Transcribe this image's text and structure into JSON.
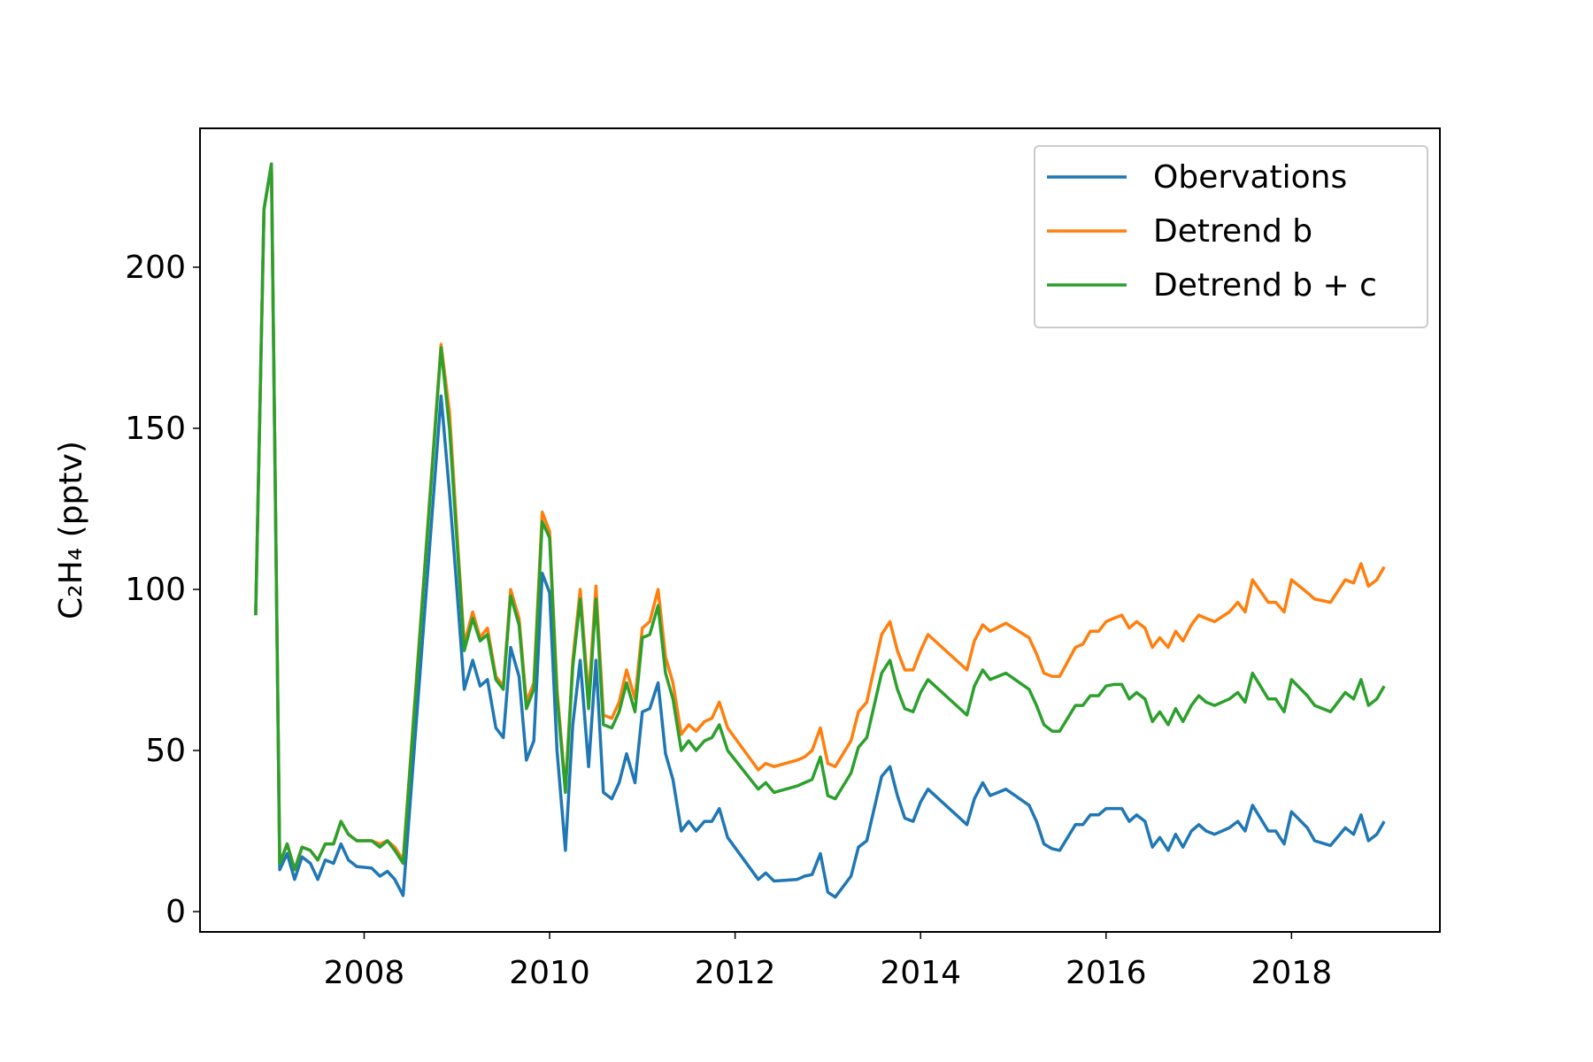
{
  "chart_data": {
    "type": "line",
    "ylabel": "C₂H₄ (pptv)",
    "x": [
      2006.83,
      2006.92,
      2007.0,
      2007.09,
      2007.17,
      2007.25,
      2007.33,
      2007.42,
      2007.5,
      2007.58,
      2007.67,
      2007.75,
      2007.83,
      2007.92,
      2008.08,
      2008.17,
      2008.25,
      2008.33,
      2008.42,
      2008.83,
      2008.92,
      2009.0,
      2009.08,
      2009.17,
      2009.25,
      2009.33,
      2009.42,
      2009.5,
      2009.58,
      2009.67,
      2009.75,
      2009.83,
      2009.92,
      2010.0,
      2010.08,
      2010.17,
      2010.25,
      2010.33,
      2010.42,
      2010.5,
      2010.58,
      2010.67,
      2010.75,
      2010.83,
      2010.92,
      2011.0,
      2011.08,
      2011.17,
      2011.25,
      2011.33,
      2011.42,
      2011.5,
      2011.58,
      2011.67,
      2011.75,
      2011.83,
      2011.92,
      2012.25,
      2012.33,
      2012.42,
      2012.67,
      2012.75,
      2012.83,
      2012.92,
      2013.0,
      2013.08,
      2013.25,
      2013.33,
      2013.42,
      2013.58,
      2013.67,
      2013.75,
      2013.83,
      2013.92,
      2014.0,
      2014.08,
      2014.5,
      2014.58,
      2014.67,
      2014.75,
      2014.92,
      2015.17,
      2015.25,
      2015.33,
      2015.42,
      2015.5,
      2015.67,
      2015.75,
      2015.83,
      2015.92,
      2016.0,
      2016.08,
      2016.17,
      2016.25,
      2016.33,
      2016.42,
      2016.5,
      2016.58,
      2016.67,
      2016.75,
      2016.83,
      2016.92,
      2017.0,
      2017.08,
      2017.17,
      2017.33,
      2017.42,
      2017.5,
      2017.58,
      2017.75,
      2017.83,
      2017.92,
      2018.0,
      2018.17,
      2018.25,
      2018.42,
      2018.58,
      2018.67,
      2018.75,
      2018.83,
      2018.92,
      2019.0
    ],
    "series": [
      {
        "name": "Obervations",
        "color": "#1f77b4",
        "values": [
          92,
          218,
          232,
          13,
          18,
          10,
          17,
          15,
          10,
          16,
          15,
          21,
          16,
          14,
          13.5,
          11,
          12.5,
          10,
          5,
          160,
          130,
          100,
          69,
          78,
          70,
          72,
          57,
          54,
          82,
          73,
          47,
          53,
          105,
          99,
          50,
          19,
          58,
          78,
          45,
          78,
          37,
          35,
          40,
          49,
          40,
          62,
          63,
          71,
          49,
          41,
          25,
          28,
          25,
          28,
          28,
          32,
          23,
          10,
          12,
          9.5,
          10,
          11,
          11.5,
          18,
          6,
          4.5,
          11,
          20,
          22,
          42,
          45,
          36,
          29,
          28,
          34,
          38,
          27,
          35,
          40,
          36,
          38,
          33,
          28,
          21,
          19.5,
          19,
          27,
          27,
          30,
          30,
          32,
          32,
          32,
          28,
          30,
          28,
          20,
          23,
          19,
          24,
          20,
          25,
          27,
          25,
          24,
          26,
          28,
          25,
          33,
          25,
          25,
          21,
          31,
          26,
          22,
          20.5,
          26,
          24,
          30,
          22,
          24,
          28
        ]
      },
      {
        "name": "Detrend b",
        "color": "#ff7f0e",
        "values": [
          92,
          218,
          232,
          15,
          21,
          13,
          20,
          19,
          16,
          21,
          21,
          28,
          24,
          22,
          22,
          21,
          22,
          20,
          16,
          176,
          155,
          118,
          83,
          93,
          85,
          88,
          73,
          70,
          100,
          91,
          65,
          71,
          124,
          118,
          69,
          38,
          78,
          100,
          66,
          101,
          61,
          60,
          65,
          75,
          66,
          88,
          90,
          100,
          79,
          71,
          55,
          58,
          56,
          59,
          60,
          65,
          57,
          44,
          46,
          45,
          47,
          48,
          50,
          57,
          46,
          45,
          53,
          62,
          65,
          86,
          90,
          81,
          75,
          75,
          81,
          86,
          75,
          84,
          89,
          87,
          89.5,
          85,
          80,
          74,
          73,
          73,
          82,
          83,
          87,
          87,
          90,
          91,
          92,
          88,
          90,
          88,
          82,
          85,
          82,
          87,
          84,
          89,
          92,
          91,
          90,
          93,
          96,
          93,
          103,
          96,
          96,
          93,
          103,
          99,
          97,
          96,
          103,
          102,
          108,
          101,
          103,
          107
        ]
      },
      {
        "name": "Detrend b + c",
        "color": "#2ca02c",
        "values": [
          92,
          218,
          232,
          15,
          21,
          13,
          20,
          19,
          16,
          21,
          21,
          28,
          24,
          22,
          22,
          20,
          22,
          19,
          15,
          175,
          150,
          115,
          81,
          91,
          84,
          86,
          72,
          69,
          98,
          89,
          63,
          69,
          121,
          116,
          67,
          37,
          76,
          97,
          63,
          97,
          58,
          57,
          62,
          71,
          62,
          85,
          86,
          95,
          74,
          66,
          50,
          53,
          50,
          53,
          54,
          58,
          50,
          38,
          40,
          37,
          39,
          40,
          41,
          48,
          36,
          35,
          43,
          51,
          54,
          74,
          78,
          69,
          63,
          62,
          68,
          72,
          61,
          70,
          75,
          72,
          74,
          69,
          64,
          58,
          56,
          56,
          64,
          64,
          67,
          67,
          70,
          70.5,
          70.5,
          66,
          68,
          66,
          59,
          62,
          58,
          63,
          59,
          64,
          67,
          65,
          64,
          66,
          68,
          65,
          74,
          66,
          66,
          62,
          72,
          67,
          64,
          62,
          68,
          66,
          72,
          64,
          66,
          70
        ]
      }
    ],
    "xlim": [
      2006.23,
      2019.6
    ],
    "xticks": [
      2008,
      2010,
      2012,
      2014,
      2016,
      2018
    ],
    "ylim": [
      -6.3,
      243.1
    ],
    "yticks": [
      0,
      50,
      100,
      150,
      200
    ],
    "grid": false,
    "legend": "upper right"
  }
}
